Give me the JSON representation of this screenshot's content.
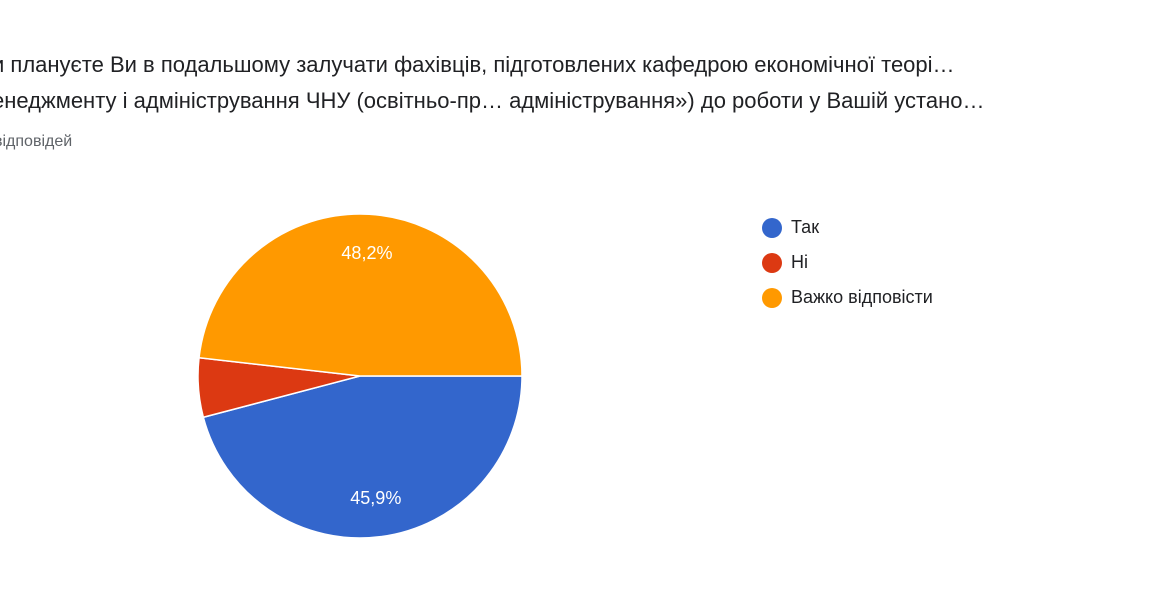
{
  "header": {
    "title_line1": "…и плануєте Ви в подальшому залучати фахівців, підготовлених кафедрою економічної теорі…",
    "title_line2": "…енеджменту і адміністрування ЧНУ (освітньо-пр… адміністрування») до роботи у Вашій устано…",
    "responses_text": "…відповідей"
  },
  "chart_data": {
    "type": "pie",
    "title": "",
    "slices": [
      {
        "label": "Так",
        "value": 45.9,
        "display": "45,9%",
        "color": "#3366cc"
      },
      {
        "label": "Ні",
        "value": 5.9,
        "display": "",
        "color": "#dc3912"
      },
      {
        "label": "Важко відповісти",
        "value": 48.2,
        "display": "48,2%",
        "color": "#ff9900"
      }
    ],
    "legend_position": "right"
  }
}
